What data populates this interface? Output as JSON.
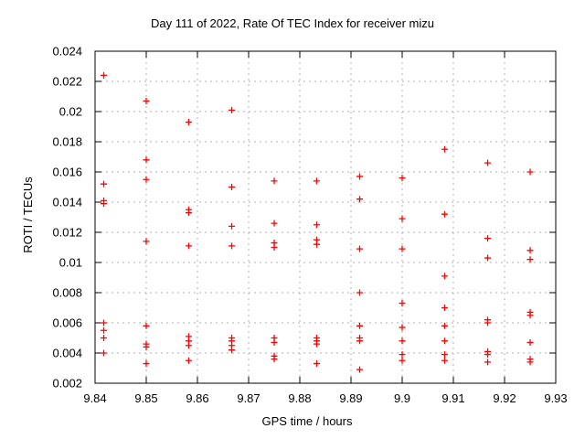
{
  "page": {
    "background": "#ffffff",
    "foreground": "#000000"
  },
  "chart_data": {
    "type": "scatter",
    "title": "Day 111 of 2022, Rate Of TEC Index for receiver mizu",
    "xlabel": "GPS time / hours",
    "ylabel": "ROTI / TECUs",
    "xlim": [
      9.84,
      9.93
    ],
    "ylim": [
      0.002,
      0.024
    ],
    "grid": true,
    "legend": "none",
    "grid_color": "#b0b0b0",
    "frame_color": "#000000",
    "marker": {
      "symbol": "plus",
      "color": "#ff0000",
      "size": 7
    },
    "x_ticks": [
      {
        "v": 9.84,
        "label": "9.84"
      },
      {
        "v": 9.85,
        "label": "9.85"
      },
      {
        "v": 9.86,
        "label": "9.86"
      },
      {
        "v": 9.87,
        "label": "9.87"
      },
      {
        "v": 9.88,
        "label": "9.88"
      },
      {
        "v": 9.89,
        "label": "9.89"
      },
      {
        "v": 9.9,
        "label": "9.9"
      },
      {
        "v": 9.91,
        "label": "9.91"
      },
      {
        "v": 9.92,
        "label": "9.92"
      },
      {
        "v": 9.93,
        "label": "9.93"
      }
    ],
    "y_ticks": [
      {
        "v": 0.002,
        "label": "0.002"
      },
      {
        "v": 0.004,
        "label": "0.004"
      },
      {
        "v": 0.006,
        "label": "0.006"
      },
      {
        "v": 0.008,
        "label": "0.008"
      },
      {
        "v": 0.01,
        "label": "0.01"
      },
      {
        "v": 0.012,
        "label": "0.012"
      },
      {
        "v": 0.014,
        "label": "0.014"
      },
      {
        "v": 0.016,
        "label": "0.016"
      },
      {
        "v": 0.018,
        "label": "0.018"
      },
      {
        "v": 0.02,
        "label": "0.02"
      },
      {
        "v": 0.022,
        "label": "0.022"
      },
      {
        "v": 0.024,
        "label": "0.024"
      }
    ],
    "series": [
      {
        "name": "ROTI",
        "points": [
          [
            9.8417,
            0.0224
          ],
          [
            9.8417,
            0.0152
          ],
          [
            9.8417,
            0.0141
          ],
          [
            9.8417,
            0.0139
          ],
          [
            9.8417,
            0.006
          ],
          [
            9.8417,
            0.0055
          ],
          [
            9.8417,
            0.005
          ],
          [
            9.8417,
            0.004
          ],
          [
            9.85,
            0.0207
          ],
          [
            9.85,
            0.0168
          ],
          [
            9.85,
            0.0155
          ],
          [
            9.85,
            0.0114
          ],
          [
            9.85,
            0.0058
          ],
          [
            9.85,
            0.0046
          ],
          [
            9.85,
            0.0044
          ],
          [
            9.85,
            0.0033
          ],
          [
            9.8583,
            0.0193
          ],
          [
            9.8583,
            0.0135
          ],
          [
            9.8583,
            0.0133
          ],
          [
            9.8583,
            0.0111
          ],
          [
            9.8583,
            0.0051
          ],
          [
            9.8583,
            0.0048
          ],
          [
            9.8583,
            0.0045
          ],
          [
            9.8583,
            0.0035
          ],
          [
            9.8667,
            0.0201
          ],
          [
            9.8667,
            0.015
          ],
          [
            9.8667,
            0.0124
          ],
          [
            9.8667,
            0.0111
          ],
          [
            9.8667,
            0.005
          ],
          [
            9.8667,
            0.0048
          ],
          [
            9.8667,
            0.0045
          ],
          [
            9.8667,
            0.0042
          ],
          [
            9.875,
            0.0154
          ],
          [
            9.875,
            0.0126
          ],
          [
            9.875,
            0.0113
          ],
          [
            9.875,
            0.011
          ],
          [
            9.875,
            0.005
          ],
          [
            9.875,
            0.0047
          ],
          [
            9.875,
            0.0038
          ],
          [
            9.875,
            0.0036
          ],
          [
            9.8833,
            0.0154
          ],
          [
            9.8833,
            0.0125
          ],
          [
            9.8833,
            0.0115
          ],
          [
            9.8833,
            0.0112
          ],
          [
            9.8833,
            0.005
          ],
          [
            9.8833,
            0.0048
          ],
          [
            9.8833,
            0.0046
          ],
          [
            9.8833,
            0.0033
          ],
          [
            9.8917,
            0.0157
          ],
          [
            9.8917,
            0.0142
          ],
          [
            9.8917,
            0.0109
          ],
          [
            9.8917,
            0.008
          ],
          [
            9.8917,
            0.0058
          ],
          [
            9.8917,
            0.005
          ],
          [
            9.8917,
            0.0048
          ],
          [
            9.8917,
            0.0029
          ],
          [
            9.9,
            0.0156
          ],
          [
            9.9,
            0.0129
          ],
          [
            9.9,
            0.0109
          ],
          [
            9.9,
            0.0073
          ],
          [
            9.9,
            0.0057
          ],
          [
            9.9,
            0.0048
          ],
          [
            9.9,
            0.0039
          ],
          [
            9.9,
            0.0035
          ],
          [
            9.9083,
            0.0175
          ],
          [
            9.9083,
            0.0132
          ],
          [
            9.9083,
            0.0091
          ],
          [
            9.9083,
            0.007
          ],
          [
            9.9083,
            0.0058
          ],
          [
            9.9083,
            0.0048
          ],
          [
            9.9083,
            0.0039
          ],
          [
            9.9083,
            0.0035
          ],
          [
            9.9167,
            0.0166
          ],
          [
            9.9167,
            0.0116
          ],
          [
            9.9167,
            0.0103
          ],
          [
            9.9167,
            0.0062
          ],
          [
            9.9167,
            0.006
          ],
          [
            9.9167,
            0.0041
          ],
          [
            9.9167,
            0.0039
          ],
          [
            9.9167,
            0.0034
          ],
          [
            9.925,
            0.016
          ],
          [
            9.925,
            0.0108
          ],
          [
            9.925,
            0.0102
          ],
          [
            9.925,
            0.0067
          ],
          [
            9.925,
            0.0065
          ],
          [
            9.925,
            0.0047
          ],
          [
            9.925,
            0.0036
          ],
          [
            9.925,
            0.0034
          ]
        ]
      }
    ]
  }
}
